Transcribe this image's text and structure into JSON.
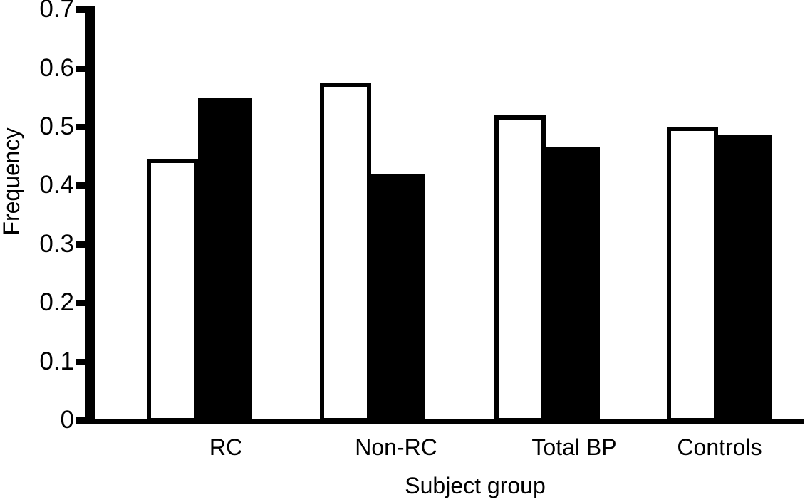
{
  "figure": {
    "background_color": "#ffffff",
    "ink_color": "#000000"
  },
  "chart_data": {
    "type": "bar",
    "title": "",
    "xlabel": "Subject group",
    "ylabel": "Frequency",
    "categories": [
      "RC",
      "Non-RC",
      "Total BP",
      "Controls"
    ],
    "series": [
      {
        "name": "white",
        "fill": "#ffffff",
        "outline": "#000000",
        "values": [
          0.445,
          0.575,
          0.52,
          0.5
        ]
      },
      {
        "name": "black",
        "fill": "#000000",
        "outline": "#000000",
        "values": [
          0.55,
          0.42,
          0.465,
          0.485
        ]
      }
    ],
    "ylim": [
      0,
      0.7
    ],
    "yticks": [
      0,
      0.1,
      0.2,
      0.3,
      0.4,
      0.5,
      0.6,
      0.7
    ],
    "ytick_labels": [
      "0",
      "0.1",
      "0.2",
      "0.3",
      "0.4",
      "0.5",
      "0.6",
      "0.7"
    ],
    "grid": false,
    "legend": "none"
  }
}
